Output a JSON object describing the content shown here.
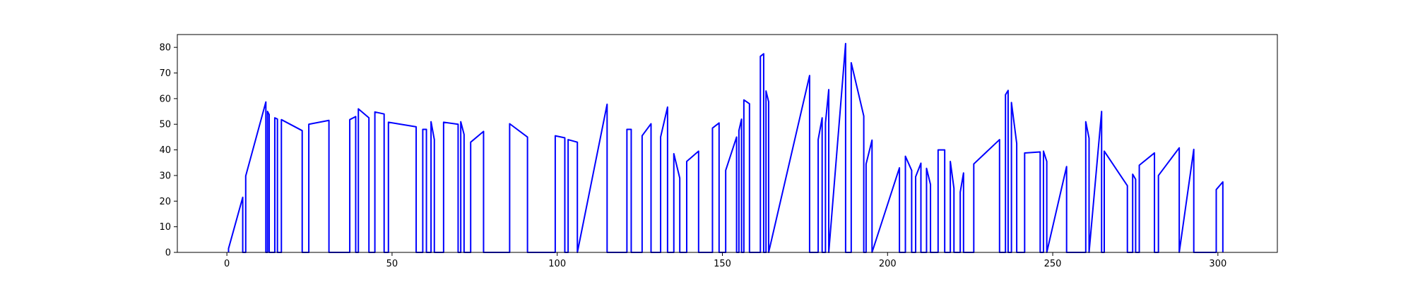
{
  "chart_data": {
    "type": "line",
    "title": "",
    "xlabel": "",
    "ylabel": "",
    "xlim": [
      -15,
      318
    ],
    "ylim": [
      0,
      85
    ],
    "grid": false,
    "legend": "none",
    "x_ticks": [
      0,
      50,
      100,
      150,
      200,
      250,
      300
    ],
    "y_ticks": [
      0,
      10,
      20,
      30,
      40,
      50,
      60,
      70,
      80
    ],
    "series": [
      {
        "color": "#0000ff",
        "points": [
          [
            0.5,
            0
          ],
          [
            0.5,
            1.5
          ],
          [
            4.8,
            21.5
          ],
          [
            4.8,
            0
          ],
          [
            5.7,
            0
          ],
          [
            5.7,
            29.8
          ],
          [
            11.8,
            58.7
          ],
          [
            11.8,
            0
          ],
          [
            12.3,
            0
          ],
          [
            12.3,
            55
          ],
          [
            12.8,
            53.8
          ],
          [
            12.8,
            0
          ],
          [
            14.5,
            0
          ],
          [
            14.5,
            52.5
          ],
          [
            15.3,
            52
          ],
          [
            15.3,
            0
          ],
          [
            16.5,
            0
          ],
          [
            16.5,
            51.8
          ],
          [
            22.8,
            47.5
          ],
          [
            22.8,
            0
          ],
          [
            24.8,
            0
          ],
          [
            24.8,
            50
          ],
          [
            30.9,
            51.5
          ],
          [
            30.9,
            0
          ],
          [
            37.2,
            0
          ],
          [
            37.2,
            51.8
          ],
          [
            39,
            53
          ],
          [
            39,
            0
          ],
          [
            39.8,
            0
          ],
          [
            39.8,
            56
          ],
          [
            43,
            52.5
          ],
          [
            43,
            0
          ],
          [
            44.8,
            0
          ],
          [
            44.8,
            54.8
          ],
          [
            47.6,
            54
          ],
          [
            47.6,
            0
          ],
          [
            48.9,
            0
          ],
          [
            48.9,
            50.8
          ],
          [
            57.3,
            49
          ],
          [
            57.3,
            0
          ],
          [
            59.3,
            0
          ],
          [
            59.3,
            48
          ],
          [
            60.4,
            48
          ],
          [
            60.4,
            0
          ],
          [
            61.8,
            0
          ],
          [
            61.8,
            51
          ],
          [
            62.8,
            44
          ],
          [
            62.8,
            0
          ],
          [
            65.6,
            0
          ],
          [
            65.6,
            50.8
          ],
          [
            70,
            50
          ],
          [
            70,
            0
          ],
          [
            70.8,
            0
          ],
          [
            70.8,
            51
          ],
          [
            71.8,
            46
          ],
          [
            71.8,
            0
          ],
          [
            73.8,
            0
          ],
          [
            73.8,
            43
          ],
          [
            77.7,
            47.2
          ],
          [
            77.7,
            0
          ],
          [
            85.6,
            0
          ],
          [
            85.6,
            50.2
          ],
          [
            91,
            45
          ],
          [
            91,
            0
          ],
          [
            99.4,
            0
          ],
          [
            99.4,
            45.5
          ],
          [
            102.3,
            44.7
          ],
          [
            102.3,
            0
          ],
          [
            103.3,
            0
          ],
          [
            103.3,
            44
          ],
          [
            106.1,
            43
          ],
          [
            106.1,
            0
          ],
          [
            115.1,
            57.8
          ],
          [
            115.1,
            0
          ],
          [
            121.1,
            0
          ],
          [
            121.1,
            48
          ],
          [
            122.4,
            48
          ],
          [
            122.4,
            0
          ],
          [
            125.7,
            0
          ],
          [
            125.7,
            45.5
          ],
          [
            128.4,
            50.2
          ],
          [
            128.4,
            0
          ],
          [
            131.3,
            0
          ],
          [
            131.3,
            45
          ],
          [
            133.4,
            56.7
          ],
          [
            133.4,
            0
          ],
          [
            135.3,
            0
          ],
          [
            135.3,
            38.5
          ],
          [
            137.1,
            29
          ],
          [
            137.1,
            0
          ],
          [
            139.2,
            0
          ],
          [
            139.2,
            35.5
          ],
          [
            142.8,
            39.5
          ],
          [
            142.8,
            0
          ],
          [
            147,
            0
          ],
          [
            147,
            48.5
          ],
          [
            149,
            50.5
          ],
          [
            149,
            0
          ],
          [
            151,
            0
          ],
          [
            151,
            32
          ],
          [
            154.3,
            45
          ],
          [
            154.3,
            0
          ],
          [
            155,
            0
          ],
          [
            155,
            47.5
          ],
          [
            155.8,
            52
          ],
          [
            155.8,
            0
          ],
          [
            156.5,
            0
          ],
          [
            156.5,
            59.5
          ],
          [
            158.2,
            58
          ],
          [
            158.2,
            0
          ],
          [
            161.5,
            0
          ],
          [
            161.5,
            76.5
          ],
          [
            162.5,
            77.5
          ],
          [
            162.5,
            0
          ],
          [
            163.2,
            0
          ],
          [
            163.2,
            63
          ],
          [
            164,
            58.8
          ],
          [
            164,
            0
          ],
          [
            176.4,
            69
          ],
          [
            176.4,
            0
          ],
          [
            179,
            0
          ],
          [
            179,
            44
          ],
          [
            180.2,
            52.5
          ],
          [
            180.2,
            0
          ],
          [
            181.2,
            0
          ],
          [
            181.2,
            50.5
          ],
          [
            182.2,
            63.5
          ],
          [
            182.2,
            0
          ],
          [
            187.3,
            81.5
          ],
          [
            187.3,
            0
          ],
          [
            189,
            0
          ],
          [
            189,
            74
          ],
          [
            192.8,
            53.2
          ],
          [
            192.8,
            0
          ],
          [
            193.5,
            0
          ],
          [
            193.5,
            34.5
          ],
          [
            195.3,
            43.8
          ],
          [
            195.3,
            0
          ],
          [
            203.6,
            33
          ],
          [
            203.6,
            0
          ],
          [
            205.4,
            0
          ],
          [
            205.4,
            37.5
          ],
          [
            207.3,
            32
          ],
          [
            207.3,
            0
          ],
          [
            208.5,
            0
          ],
          [
            208.5,
            29.5
          ],
          [
            210.1,
            34.8
          ],
          [
            210.1,
            0
          ],
          [
            211.8,
            0
          ],
          [
            211.8,
            32.8
          ],
          [
            213,
            26.5
          ],
          [
            213,
            0
          ],
          [
            215.3,
            0
          ],
          [
            215.3,
            40
          ],
          [
            217.3,
            40
          ],
          [
            217.3,
            0
          ],
          [
            219,
            0
          ],
          [
            219,
            35.5
          ],
          [
            220.1,
            25
          ],
          [
            220.1,
            0
          ],
          [
            222,
            0
          ],
          [
            222,
            23.5
          ],
          [
            223,
            31
          ],
          [
            223,
            0
          ],
          [
            226.1,
            0
          ],
          [
            226.1,
            34.5
          ],
          [
            233.9,
            44
          ],
          [
            233.9,
            0
          ],
          [
            235.7,
            0
          ],
          [
            235.7,
            61.5
          ],
          [
            236.5,
            63.2
          ],
          [
            236.5,
            0
          ],
          [
            237.5,
            0
          ],
          [
            237.5,
            58.5
          ],
          [
            239.1,
            42.5
          ],
          [
            239.1,
            0
          ],
          [
            241.5,
            0
          ],
          [
            241.5,
            38.8
          ],
          [
            246.2,
            39.2
          ],
          [
            246.2,
            0
          ],
          [
            247.2,
            0
          ],
          [
            247.2,
            39.5
          ],
          [
            248.2,
            35.5
          ],
          [
            248.2,
            0
          ],
          [
            254.2,
            33.5
          ],
          [
            254.2,
            0
          ],
          [
            260,
            0
          ],
          [
            260,
            51
          ],
          [
            261,
            44.5
          ],
          [
            261,
            0
          ],
          [
            264.8,
            55
          ],
          [
            264.8,
            0
          ],
          [
            265.6,
            0
          ],
          [
            265.6,
            39.5
          ],
          [
            272.6,
            26
          ],
          [
            272.6,
            0
          ],
          [
            274.2,
            0
          ],
          [
            274.2,
            30.5
          ],
          [
            275.1,
            28.5
          ],
          [
            275.1,
            0
          ],
          [
            276.2,
            0
          ],
          [
            276.2,
            34
          ],
          [
            280.8,
            38.8
          ],
          [
            280.8,
            0
          ],
          [
            282,
            0
          ],
          [
            282,
            30
          ],
          [
            288.3,
            40.8
          ],
          [
            288.3,
            0
          ],
          [
            292.7,
            40.2
          ],
          [
            292.7,
            0
          ],
          [
            299.5,
            0
          ],
          [
            299.5,
            24.5
          ],
          [
            301.5,
            27.5
          ],
          [
            301.5,
            0
          ]
        ]
      }
    ]
  }
}
